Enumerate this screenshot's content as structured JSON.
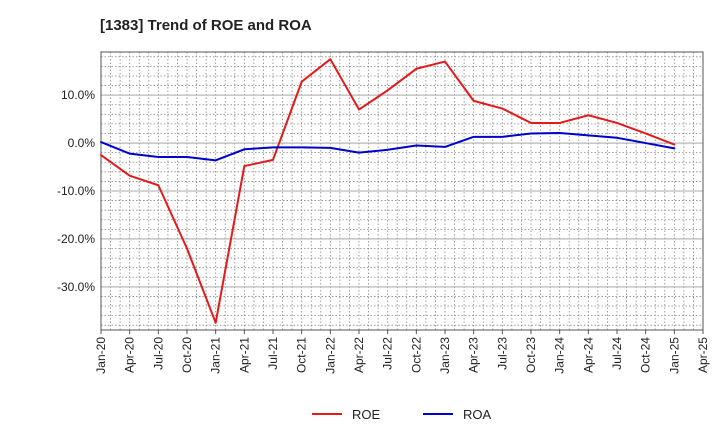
{
  "chart_data": {
    "type": "line",
    "title": "[1383]  Trend of ROE and ROA",
    "xlabel": "",
    "ylabel": "",
    "ylim": [
      -39,
      19
    ],
    "yticks": [
      10,
      0,
      -10,
      -20,
      -30
    ],
    "ytick_labels": [
      "10.0%",
      "0.0%",
      "-10.0%",
      "-20.0%",
      "-30.0%"
    ],
    "categories": [
      "Jan-20",
      "Apr-20",
      "Jul-20",
      "Oct-20",
      "Jan-21",
      "Apr-21",
      "Jul-21",
      "Oct-21",
      "Jan-22",
      "Apr-22",
      "Jul-22",
      "Oct-22",
      "Jan-23",
      "Apr-23",
      "Jul-23",
      "Oct-23",
      "Jan-24",
      "Apr-24",
      "Jul-24",
      "Oct-24",
      "Jan-25",
      "Apr-25"
    ],
    "grid": true,
    "legend_position": "bottom-center",
    "series": [
      {
        "name": "ROE",
        "color": "#e31a1c",
        "values": [
          -2.5,
          -6.8,
          -8.8,
          -22.0,
          -37.5,
          -4.8,
          -3.5,
          12.8,
          17.5,
          7.0,
          11.0,
          15.5,
          17.0,
          8.8,
          7.2,
          4.2,
          4.2,
          5.8,
          4.2,
          2.0,
          -0.3,
          null
        ]
      },
      {
        "name": "ROA",
        "color": "#0000cc",
        "values": [
          0.2,
          -2.2,
          -2.9,
          -2.9,
          -3.6,
          -1.3,
          -0.9,
          -0.9,
          -1.0,
          -2.0,
          -1.4,
          -0.5,
          -0.8,
          1.3,
          1.3,
          2.0,
          2.1,
          1.6,
          1.1,
          0.0,
          -1.1,
          null
        ]
      }
    ]
  }
}
